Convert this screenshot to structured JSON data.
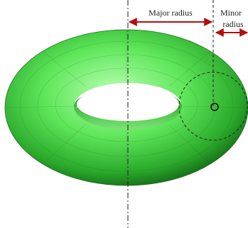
{
  "labels": {
    "major_radius": "Major radius",
    "minor_radius": [
      "Minor",
      "radius"
    ]
  }
}
